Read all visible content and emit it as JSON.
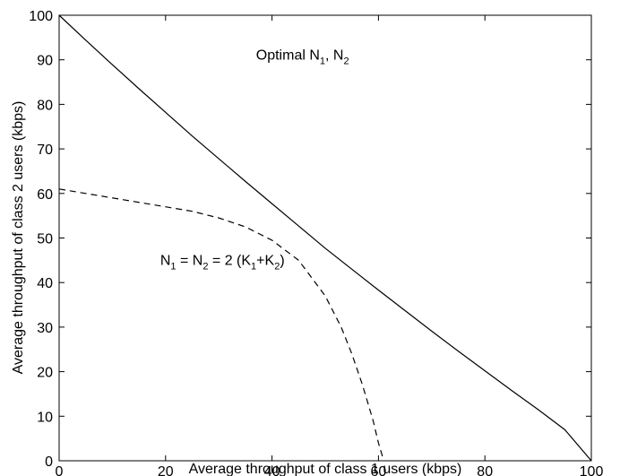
{
  "chart_data": {
    "type": "line",
    "xlabel": "Average throughput of class 1 users  (kbps)",
    "ylabel": "Average throughput of class 2 users  (kbps)",
    "xlim": [
      0,
      100
    ],
    "ylim": [
      0,
      100
    ],
    "xticks": [
      "0",
      "20",
      "40",
      "60",
      "80",
      "100"
    ],
    "yticks": [
      "0",
      "10",
      "20",
      "30",
      "40",
      "50",
      "60",
      "70",
      "80",
      "90",
      "100"
    ],
    "grid": false,
    "legend": "none",
    "series": [
      {
        "line_style": "solid",
        "color": "#000000",
        "x": [
          0,
          5,
          10,
          15,
          20,
          25,
          30,
          35,
          40,
          45,
          50,
          55,
          60,
          65,
          70,
          75,
          80,
          85,
          90,
          95,
          100
        ],
        "y": [
          100,
          94.4,
          88.9,
          83.5,
          78.2,
          72.9,
          67.8,
          62.7,
          57.7,
          52.7,
          47.7,
          43.0,
          38.3,
          33.7,
          29.1,
          24.6,
          20.2,
          15.8,
          11.5,
          7.0,
          0
        ]
      },
      {
        "line_style": "dashed",
        "color": "#000000",
        "x": [
          0,
          5,
          10,
          15,
          20,
          25,
          30,
          35,
          40,
          45,
          50,
          53,
          55,
          57,
          59,
          60,
          61
        ],
        "y": [
          61,
          60,
          59,
          58,
          57,
          56,
          54.5,
          52.5,
          49.5,
          45,
          37,
          30,
          24,
          17,
          9,
          4,
          0
        ]
      }
    ],
    "annotations": [
      {
        "at": [
          37,
          90
        ],
        "parts": [
          [
            "Optimal N",
            ""
          ],
          [
            "1",
            "sub"
          ],
          [
            ", N",
            ""
          ],
          [
            "2",
            "sub"
          ]
        ]
      },
      {
        "at": [
          19,
          44
        ],
        "parts": [
          [
            "N",
            ""
          ],
          [
            "1",
            "sub"
          ],
          [
            " = N",
            ""
          ],
          [
            "2",
            "sub"
          ],
          [
            " = 2 (K",
            ""
          ],
          [
            "1",
            "sub"
          ],
          [
            "+K",
            ""
          ],
          [
            "2",
            "sub"
          ],
          [
            ")",
            ""
          ]
        ]
      }
    ]
  }
}
